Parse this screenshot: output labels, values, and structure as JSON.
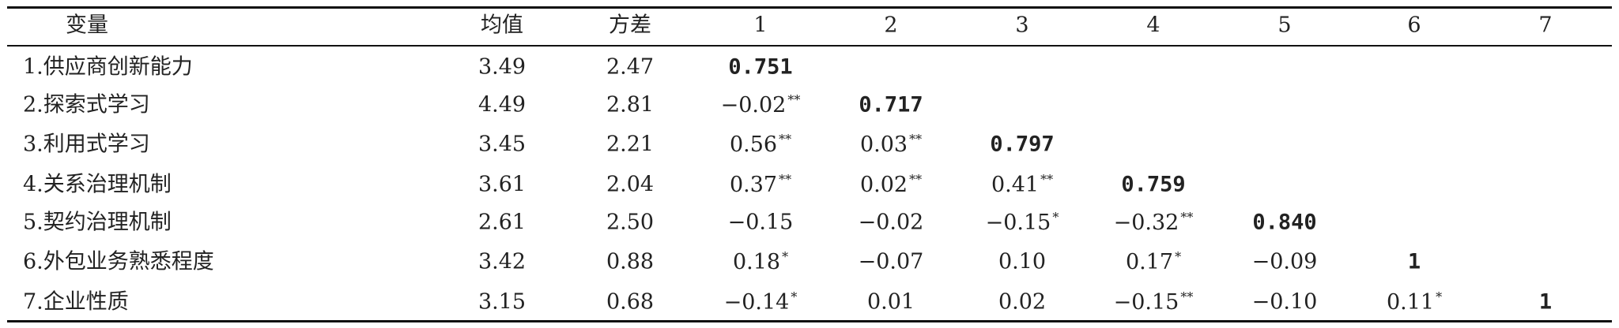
{
  "table": {
    "header": [
      "变量",
      "均值",
      "方差",
      "1",
      "2",
      "3",
      "4",
      "5",
      "6",
      "7"
    ],
    "rows": [
      {
        "label": "1.供应商创新能力",
        "mean": "3.49",
        "var": "2.47",
        "corr": [
          {
            "v": "0.751"
          }
        ]
      },
      {
        "label": "2.探索式学习",
        "mean": "4.49",
        "var": "2.81",
        "corr": [
          {
            "v": "−0.02",
            "sig": "**"
          },
          {
            "v": "0.717"
          }
        ]
      },
      {
        "label": "3.利用式学习",
        "mean": "3.45",
        "var": "2.21",
        "corr": [
          {
            "v": "0.56",
            "sig": "**"
          },
          {
            "v": "0.03",
            "sig": "**"
          },
          {
            "v": "0.797"
          }
        ]
      },
      {
        "label": "4.关系治理机制",
        "mean": "3.61",
        "var": "2.04",
        "corr": [
          {
            "v": "0.37",
            "sig": "**"
          },
          {
            "v": "0.02",
            "sig": "**"
          },
          {
            "v": "0.41",
            "sig": "**"
          },
          {
            "v": "0.759"
          }
        ]
      },
      {
        "label": "5.契约治理机制",
        "mean": "2.61",
        "var": "2.50",
        "corr": [
          {
            "v": "−0.15"
          },
          {
            "v": "−0.02"
          },
          {
            "v": "−0.15",
            "sig": "*"
          },
          {
            "v": "−0.32",
            "sig": "**"
          },
          {
            "v": "0.840"
          }
        ]
      },
      {
        "label": "6.外包业务熟悉程度",
        "mean": "3.42",
        "var": "0.88",
        "corr": [
          {
            "v": "0.18",
            "sig": "*"
          },
          {
            "v": "−0.07"
          },
          {
            "v": "0.10"
          },
          {
            "v": "0.17",
            "sig": "*"
          },
          {
            "v": "−0.09"
          },
          {
            "v": "1"
          }
        ]
      },
      {
        "label": "7.企业性质",
        "mean": "3.15",
        "var": "0.68",
        "corr": [
          {
            "v": "−0.14",
            "sig": "*"
          },
          {
            "v": "0.01"
          },
          {
            "v": "0.02"
          },
          {
            "v": "−0.15",
            "sig": "**"
          },
          {
            "v": "−0.10"
          },
          {
            "v": "0.11",
            "sig": "*"
          },
          {
            "v": "1"
          }
        ]
      }
    ]
  }
}
